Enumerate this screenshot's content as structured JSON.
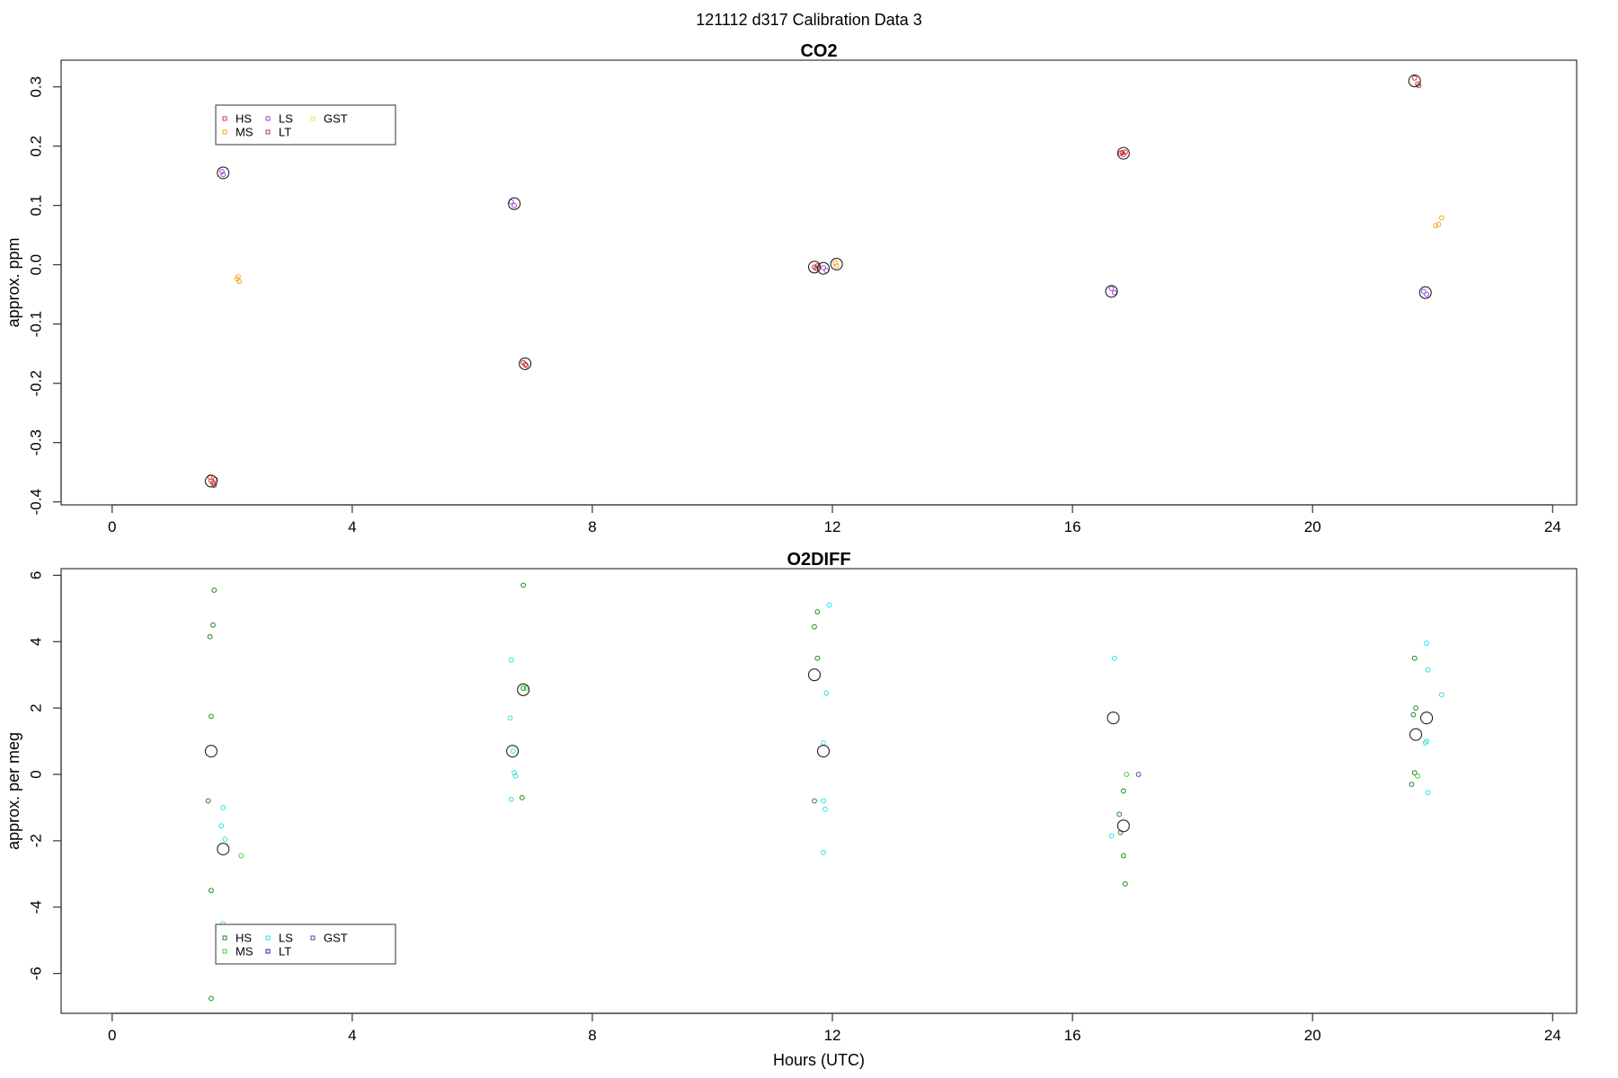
{
  "figure_title": "121112   d317   Calibration Data 3",
  "chart_data": [
    {
      "type": "scatter",
      "title": "CO2",
      "xlabel": "",
      "ylabel": "approx. ppm",
      "xlim": [
        -0.85,
        24.4
      ],
      "ylim": [
        -0.405,
        0.345
      ],
      "xticks": [
        0,
        4,
        8,
        12,
        16,
        20,
        24
      ],
      "yticks": [
        -0.4,
        -0.3,
        -0.2,
        -0.1,
        0.0,
        0.1,
        0.2,
        0.3
      ],
      "ytick_labels": [
        "-0.4",
        "-0.3",
        "-0.2",
        "-0.1",
        "0.0",
        "0.1",
        "0.2",
        "0.3"
      ],
      "grid": false,
      "legend_position": "top-left",
      "series": [
        {
          "name": "HS",
          "color": "#e03030",
          "points": [
            [
              1.65,
              -0.365
            ],
            [
              1.7,
              -0.372
            ],
            [
              1.63,
              -0.358
            ],
            [
              1.72,
              -0.362
            ],
            [
              6.85,
              -0.165
            ],
            [
              6.9,
              -0.17
            ],
            [
              11.7,
              -0.004
            ],
            [
              11.75,
              -0.002
            ],
            [
              16.8,
              0.188
            ],
            [
              16.88,
              0.19
            ],
            [
              16.85,
              0.186
            ],
            [
              21.7,
              0.315
            ],
            [
              21.75,
              0.305
            ]
          ]
        },
        {
          "name": "MS",
          "color": "#f5a623",
          "points": [
            [
              2.1,
              -0.02
            ],
            [
              2.12,
              -0.028
            ],
            [
              2.08,
              -0.024
            ],
            [
              12.05,
              0.003
            ],
            [
              12.07,
              -0.002
            ],
            [
              22.1,
              0.068
            ],
            [
              22.15,
              0.079
            ],
            [
              22.05,
              0.066
            ]
          ]
        },
        {
          "name": "LS",
          "color": "#a040e0",
          "points": [
            [
              1.83,
              0.157
            ],
            [
              1.85,
              0.152
            ],
            [
              6.65,
              0.106
            ],
            [
              6.7,
              0.1
            ],
            [
              11.85,
              -0.005
            ],
            [
              11.9,
              -0.01
            ],
            [
              16.65,
              -0.04
            ],
            [
              16.7,
              -0.047
            ],
            [
              21.85,
              -0.045
            ],
            [
              21.9,
              -0.05
            ]
          ]
        },
        {
          "name": "LT",
          "color": "#b03050",
          "points": [
            [
              1.68,
              -0.368
            ],
            [
              6.88,
              -0.168
            ],
            [
              11.73,
              -0.006
            ],
            [
              16.83,
              0.189
            ],
            [
              21.77,
              0.302
            ]
          ]
        },
        {
          "name": "GST",
          "color": "#f5e050",
          "points": []
        }
      ],
      "means": [
        [
          1.65,
          -0.365
        ],
        [
          1.85,
          0.155
        ],
        [
          6.7,
          0.103
        ],
        [
          6.88,
          -0.167
        ],
        [
          11.7,
          -0.004
        ],
        [
          11.85,
          -0.006
        ],
        [
          12.07,
          0.001
        ],
        [
          16.65,
          -0.045
        ],
        [
          16.85,
          0.188
        ],
        [
          21.7,
          0.31
        ],
        [
          21.88,
          -0.047
        ]
      ]
    },
    {
      "type": "scatter",
      "title": "O2DIFF",
      "xlabel": "Hours (UTC)",
      "ylabel": "approx. per meg",
      "xlim": [
        -0.85,
        24.4
      ],
      "ylim": [
        -7.2,
        6.2
      ],
      "xticks": [
        0,
        4,
        8,
        12,
        16,
        20,
        24
      ],
      "yticks": [
        -6,
        -4,
        -2,
        0,
        2,
        4,
        6
      ],
      "ytick_labels": [
        "-6",
        "-4",
        "-2",
        "0",
        "2",
        "4",
        "6"
      ],
      "grid": false,
      "legend_position": "bottom-left",
      "series": [
        {
          "name": "HS",
          "color": "#1a8a1a",
          "points": [
            [
              1.7,
              5.55
            ],
            [
              1.68,
              4.5
            ],
            [
              1.63,
              4.15
            ],
            [
              1.65,
              1.75
            ],
            [
              1.6,
              -0.8
            ],
            [
              1.65,
              -3.5
            ],
            [
              1.65,
              -6.75
            ],
            [
              6.85,
              5.7
            ],
            [
              6.85,
              2.6
            ],
            [
              6.83,
              -0.7
            ],
            [
              11.75,
              4.9
            ],
            [
              11.7,
              4.45
            ],
            [
              11.75,
              3.5
            ],
            [
              11.7,
              -0.8
            ],
            [
              16.85,
              -0.5
            ],
            [
              16.78,
              -1.2
            ],
            [
              16.85,
              -2.45
            ],
            [
              16.88,
              -3.3
            ],
            [
              16.8,
              -1.75
            ],
            [
              21.7,
              3.5
            ],
            [
              21.68,
              1.8
            ],
            [
              21.65,
              -0.3
            ],
            [
              21.72,
              2.0
            ],
            [
              21.7,
              0.05
            ]
          ]
        },
        {
          "name": "MS",
          "color": "#40d040",
          "points": [
            [
              2.15,
              -2.45
            ],
            [
              6.9,
              2.6
            ],
            [
              16.9,
              0.0
            ],
            [
              21.75,
              -0.05
            ]
          ]
        },
        {
          "name": "LS",
          "color": "#30e0e0",
          "points": [
            [
              1.85,
              -1.0
            ],
            [
              1.82,
              -1.55
            ],
            [
              1.88,
              -1.95
            ],
            [
              1.85,
              -4.5
            ],
            [
              6.65,
              3.45
            ],
            [
              6.63,
              1.7
            ],
            [
              6.7,
              0.05
            ],
            [
              6.72,
              -0.05
            ],
            [
              6.65,
              -0.75
            ],
            [
              6.68,
              0.7
            ],
            [
              11.95,
              5.1
            ],
            [
              11.9,
              2.45
            ],
            [
              11.85,
              0.95
            ],
            [
              11.85,
              -0.8
            ],
            [
              11.88,
              -1.05
            ],
            [
              11.85,
              -2.35
            ],
            [
              16.7,
              3.5
            ],
            [
              16.65,
              -1.85
            ],
            [
              21.9,
              3.95
            ],
            [
              21.92,
              3.15
            ],
            [
              22.15,
              2.4
            ],
            [
              21.88,
              0.95
            ],
            [
              21.9,
              1.0
            ],
            [
              21.92,
              -0.55
            ]
          ]
        },
        {
          "name": "LT",
          "color": "#2020c0",
          "points": []
        },
        {
          "name": "GST",
          "color": "#6040a0",
          "points": [
            [
              17.1,
              0.0
            ]
          ]
        }
      ],
      "means": [
        [
          1.65,
          0.7
        ],
        [
          1.85,
          -2.25
        ],
        [
          6.67,
          0.7
        ],
        [
          6.85,
          2.55
        ],
        [
          11.7,
          3.0
        ],
        [
          11.85,
          0.7
        ],
        [
          16.68,
          1.7
        ],
        [
          16.85,
          -1.55
        ],
        [
          21.72,
          1.2
        ],
        [
          21.9,
          1.7
        ]
      ]
    }
  ]
}
